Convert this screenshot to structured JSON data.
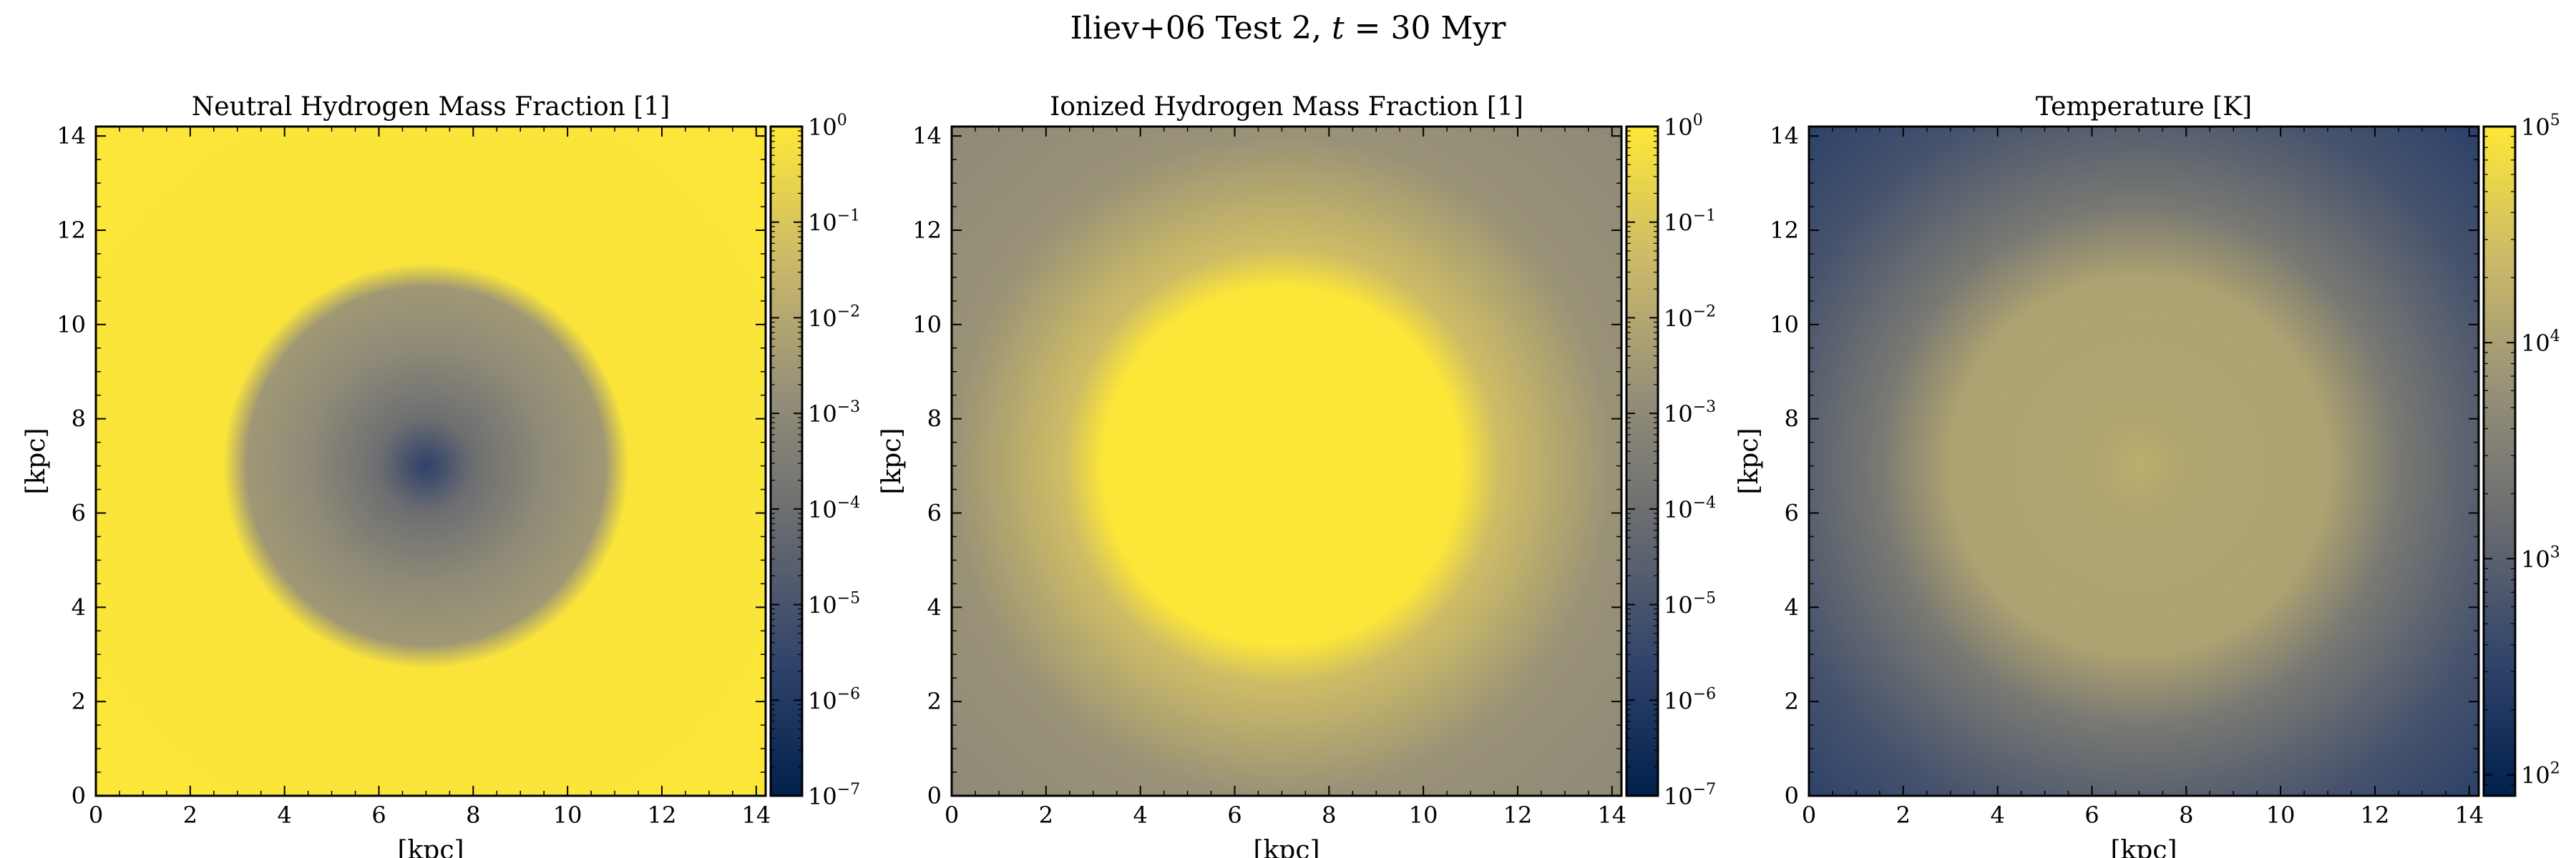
{
  "figure": {
    "title": "Iliev+06 Test 2, t = 30 Myr"
  },
  "chart_data": [
    {
      "type": "heatmap",
      "title": "Neutral Hydrogen Mass Fraction [1]",
      "xlabel": "[kpc]",
      "ylabel": "[kpc]",
      "xlim": [
        0,
        14.2
      ],
      "ylim": [
        0,
        14.2
      ],
      "x_ticks": [
        0,
        2,
        4,
        6,
        8,
        10,
        12,
        14
      ],
      "y_ticks": [
        0,
        2,
        4,
        6,
        8,
        10,
        12,
        14
      ],
      "colorbar": {
        "scale": "log",
        "range": [
          1e-07,
          1
        ],
        "tick_exponents": [
          -7,
          -6,
          -5,
          -4,
          -3,
          -2,
          -1,
          0
        ],
        "colormap": "cividis",
        "colors": [
          "#00204c",
          "#31446b",
          "#666970",
          "#958f78",
          "#cbba69",
          "#fde737"
        ]
      },
      "field": {
        "center": [
          7.0,
          7.0
        ],
        "description_values": [
          {
            "r": 0.0,
            "value": 2e-06
          },
          {
            "r": 1.0,
            "value": 0.0001
          },
          {
            "r": 2.5,
            "value": 0.001
          },
          {
            "r": 3.8,
            "value": 0.003
          },
          {
            "r": 4.3,
            "value": 0.8
          },
          {
            "r": 10.0,
            "value": 0.9
          }
        ]
      }
    },
    {
      "type": "heatmap",
      "title": "Ionized Hydrogen Mass Fraction [1]",
      "xlabel": "[kpc]",
      "ylabel": "[kpc]",
      "xlim": [
        0,
        14.2
      ],
      "ylim": [
        0,
        14.2
      ],
      "x_ticks": [
        0,
        2,
        4,
        6,
        8,
        10,
        12,
        14
      ],
      "y_ticks": [
        0,
        2,
        4,
        6,
        8,
        10,
        12,
        14
      ],
      "colorbar": {
        "scale": "log",
        "range": [
          1e-07,
          1
        ],
        "tick_exponents": [
          -7,
          -6,
          -5,
          -4,
          -3,
          -2,
          -1,
          0
        ],
        "colormap": "cividis",
        "colors": [
          "#00204c",
          "#31446b",
          "#666970",
          "#958f78",
          "#cbba69",
          "#fde737"
        ]
      },
      "field": {
        "center": [
          7.0,
          7.0
        ],
        "description_values": [
          {
            "r": 0.0,
            "value": 1.0
          },
          {
            "r": 3.8,
            "value": 0.95
          },
          {
            "r": 4.6,
            "value": 0.05
          },
          {
            "r": 7.0,
            "value": 0.002
          },
          {
            "r": 10.0,
            "value": 0.001
          }
        ]
      }
    },
    {
      "type": "heatmap",
      "title": "Temperature [K]",
      "xlabel": "[kpc]",
      "ylabel": "[kpc]",
      "xlim": [
        0,
        14.2
      ],
      "ylim": [
        0,
        14.2
      ],
      "x_ticks": [
        0,
        2,
        4,
        6,
        8,
        10,
        12,
        14
      ],
      "y_ticks": [
        0,
        2,
        4,
        6,
        8,
        10,
        12,
        14
      ],
      "colorbar": {
        "scale": "log",
        "range": [
          80,
          100000
        ],
        "tick_exponents": [
          2,
          3,
          4,
          5
        ],
        "colormap": "cividis",
        "colors": [
          "#00204c",
          "#31446b",
          "#666970",
          "#958f78",
          "#cbba69",
          "#fde737"
        ]
      },
      "field": {
        "center": [
          7.0,
          7.0
        ],
        "description_values": [
          {
            "r": 0.0,
            "value": 16000
          },
          {
            "r": 1.0,
            "value": 12000
          },
          {
            "r": 4.0,
            "value": 11000
          },
          {
            "r": 5.5,
            "value": 2500
          },
          {
            "r": 8.0,
            "value": 600
          },
          {
            "r": 10.0,
            "value": 300
          }
        ]
      }
    }
  ]
}
